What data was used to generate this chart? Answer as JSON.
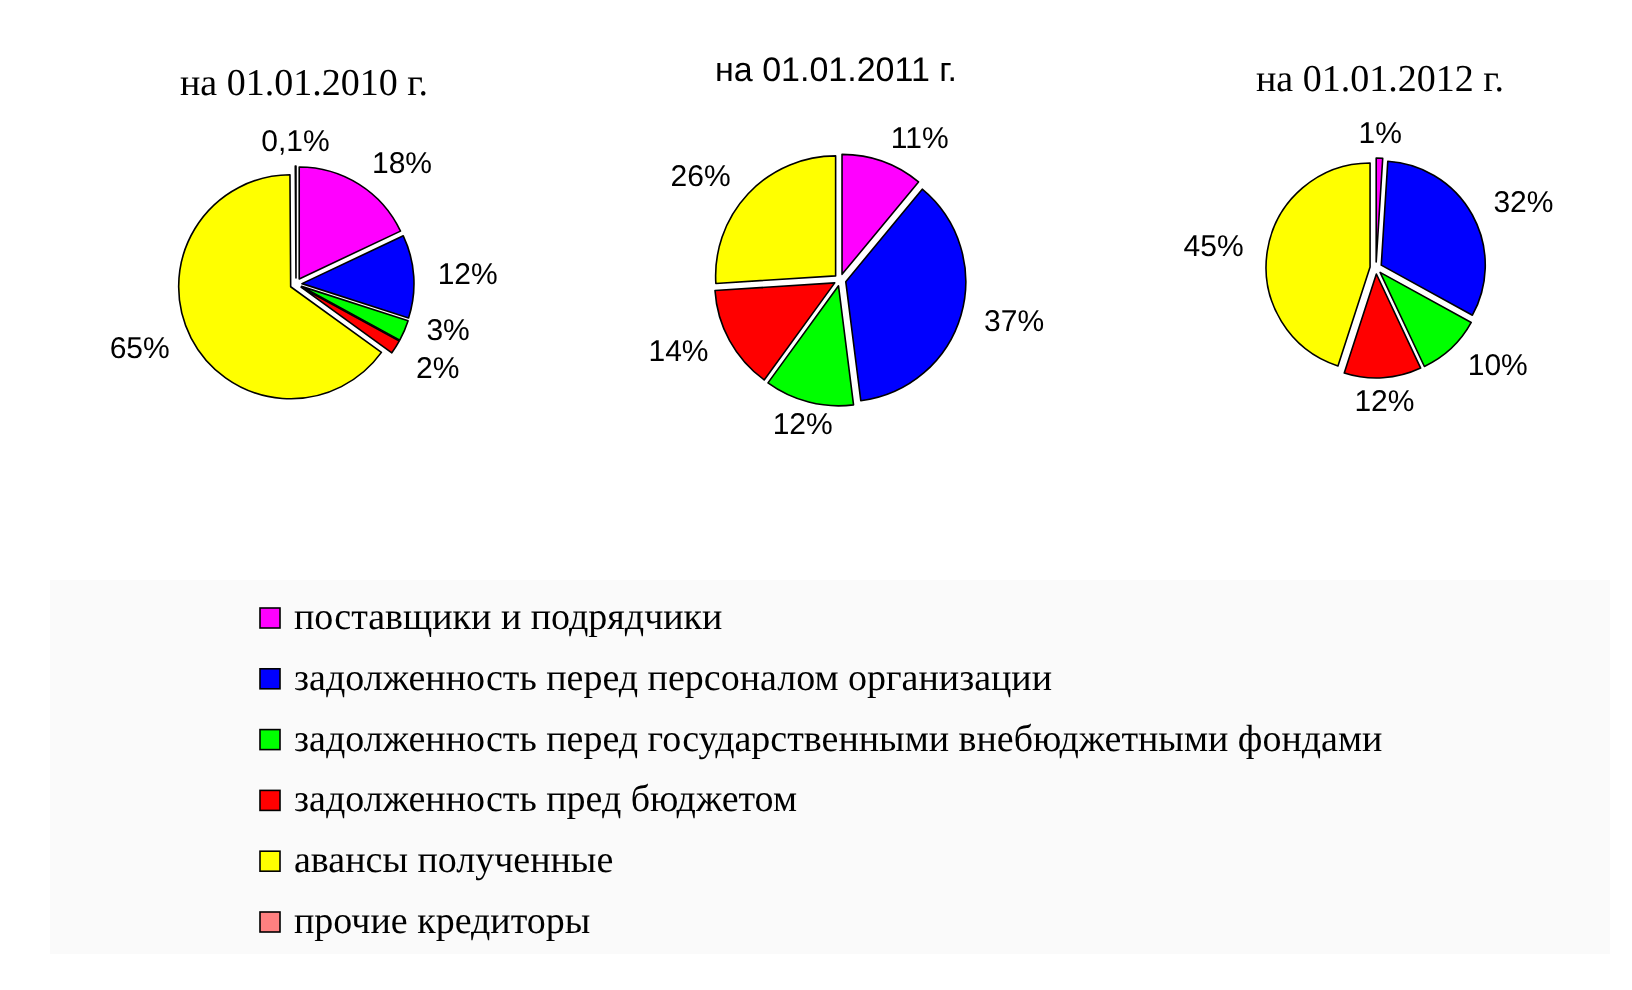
{
  "chart_data": [
    {
      "type": "pie",
      "title": "на 01.01.2010 г.",
      "categories": [
        "поставщики и подрядчики",
        "задолженность перед персоналом организации",
        "задолженность перед государственными внебюджетными фондами",
        "задолженность пред бюджетом",
        "авансы полученные",
        "прочие кредиторы"
      ],
      "values": [
        18,
        12,
        3,
        2,
        65,
        0.1
      ],
      "colors": [
        "#ff00ff",
        "#0000ff",
        "#00ff00",
        "#ff0000",
        "#ffff00",
        "#ff8080"
      ],
      "value_labels": [
        "18%",
        "12%",
        "3%",
        "2%",
        "65%",
        "0,1%"
      ],
      "legend": "bottom"
    },
    {
      "type": "pie",
      "title": "на 01.01.2011 г.",
      "categories": [
        null,
        null,
        null,
        null,
        null
      ],
      "values": [
        11,
        37,
        12,
        14,
        26
      ],
      "colors": [
        "#ff00ff",
        "#0000ff",
        "#00ff00",
        "#ff0000",
        "#ffff00"
      ],
      "value_labels": [
        "11%",
        "37%",
        "12%",
        "14%",
        "26%"
      ]
    },
    {
      "type": "pie",
      "title": "на 01.01.2012 г.",
      "categories": [
        null,
        null,
        null,
        null,
        null
      ],
      "values": [
        1,
        32,
        10,
        12,
        45
      ],
      "colors": [
        "#ff00ff",
        "#0000ff",
        "#00ff00",
        "#ff0000",
        "#ffff00"
      ],
      "value_labels": [
        "1%",
        "32%",
        "10%",
        "12%",
        "45%"
      ]
    }
  ]
}
